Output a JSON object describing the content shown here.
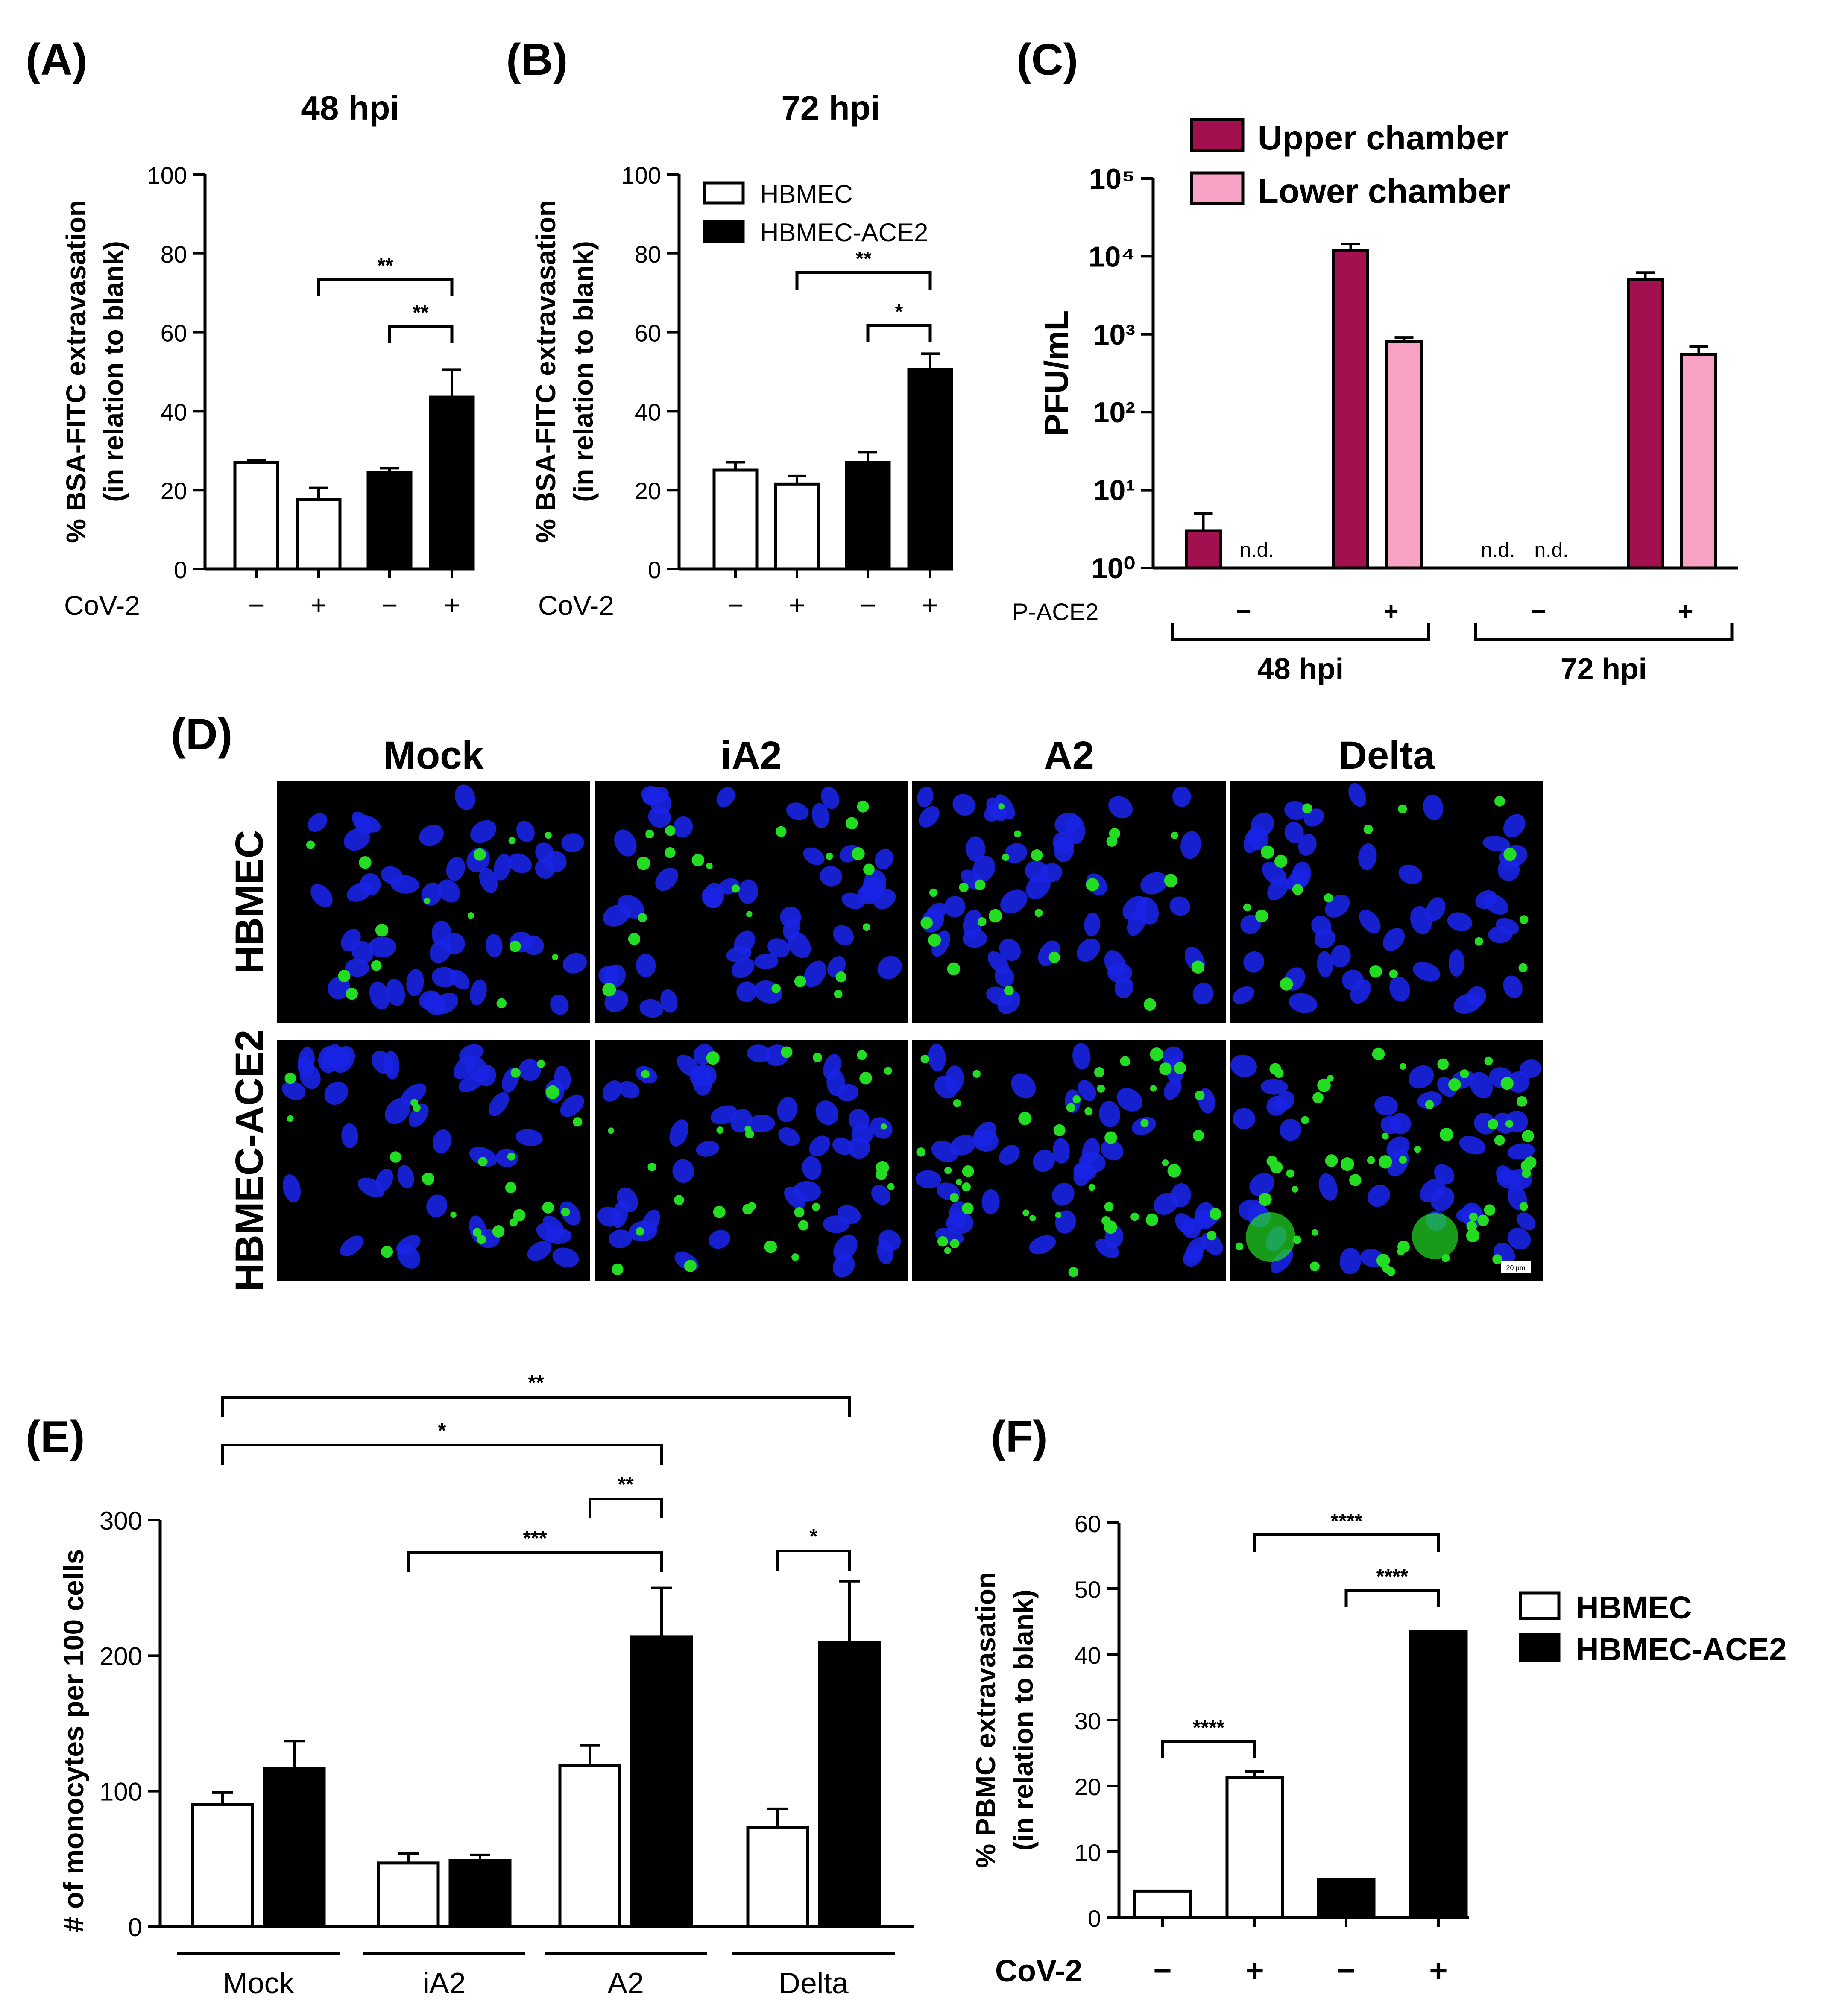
{
  "panel_labels": {
    "A": "(A)",
    "B": "(B)",
    "C": "(C)",
    "D": "(D)",
    "E": "(E)",
    "F": "(F)"
  },
  "colors": {
    "black": "#000000",
    "white": "#ffffff",
    "upper_chamber": "#a3104f",
    "lower_chamber": "#f7a1c4",
    "nuclei": "#1a24e6",
    "monocytes": "#22dd22",
    "image_bg": "#000000"
  },
  "chart_data": [
    {
      "id": "A",
      "type": "bar",
      "title": "48 hpi",
      "ylabel": [
        "% BSA-FITC extravasation",
        "(in relation to blank)"
      ],
      "xlabel": "",
      "ylim": [
        0,
        100
      ],
      "yticks": [
        0,
        20,
        40,
        60,
        80,
        100
      ],
      "row_label": "CoV-2",
      "categories": [
        "−",
        "+",
        "−",
        "+"
      ],
      "values": [
        27,
        17.5,
        24.5,
        43.5
      ],
      "errors": [
        0.5,
        3,
        1,
        7
      ],
      "fill": [
        "white",
        "white",
        "black",
        "black"
      ],
      "significance": [
        {
          "from": 1,
          "to": 3,
          "label": "**"
        },
        {
          "from": 2,
          "to": 3,
          "label": "**"
        }
      ]
    },
    {
      "id": "B",
      "type": "bar",
      "title": "72 hpi",
      "ylabel": [
        "% BSA-FITC extravasation",
        "(in relation to blank)"
      ],
      "xlabel": "",
      "ylim": [
        0,
        100
      ],
      "yticks": [
        0,
        20,
        40,
        60,
        80,
        100
      ],
      "row_label": "CoV-2",
      "categories": [
        "−",
        "+",
        "−",
        "+"
      ],
      "values": [
        25,
        21.5,
        27,
        50.5
      ],
      "errors": [
        2,
        2,
        2.5,
        4
      ],
      "fill": [
        "white",
        "white",
        "black",
        "black"
      ],
      "legend": [
        {
          "label": "HBMEC",
          "fill": "white"
        },
        {
          "label": "HBMEC-ACE2",
          "fill": "black"
        }
      ],
      "significance": [
        {
          "from": 1,
          "to": 3,
          "label": "**"
        },
        {
          "from": 2,
          "to": 3,
          "label": "*"
        }
      ]
    },
    {
      "id": "C",
      "type": "bar",
      "scale": "log",
      "ylabel": "PFU/mL",
      "xlabel": "",
      "ylim": [
        1,
        100000
      ],
      "yticks": [
        "10⁰",
        "10¹",
        "10²",
        "10³",
        "10⁴",
        "10⁵"
      ],
      "row_label": "P-ACE2",
      "groups": [
        {
          "treatment": "−",
          "time": "48 hpi"
        },
        {
          "treatment": "+",
          "time": "48 hpi"
        },
        {
          "treatment": "−",
          "time": "72 hpi"
        },
        {
          "treatment": "+",
          "time": "72 hpi"
        }
      ],
      "time_labels": [
        "48 hpi",
        "72 hpi"
      ],
      "series": [
        {
          "name": "Upper chamber",
          "color": "#a3104f",
          "values": [
            3,
            12000,
            null,
            5000
          ],
          "error_up": [
            5,
            14500,
            null,
            6200
          ]
        },
        {
          "name": "Lower chamber",
          "color": "#f7a1c4",
          "values": [
            null,
            800,
            null,
            550
          ],
          "error_up": [
            null,
            900,
            null,
            700
          ]
        }
      ],
      "nd_label": "n.d."
    },
    {
      "id": "E",
      "type": "bar",
      "ylabel": "# of monocytes per 100 cells",
      "xlabel": "",
      "ylim": [
        0,
        300
      ],
      "yticks": [
        0,
        100,
        200,
        300
      ],
      "categories": [
        "Mock",
        "iA2",
        "A2",
        "Delta"
      ],
      "series": [
        {
          "name": "HBMEC",
          "fill": "white",
          "values": [
            90,
            47,
            119,
            73
          ],
          "errors": [
            9,
            7,
            15,
            14
          ]
        },
        {
          "name": "HBMEC-ACE2",
          "fill": "black",
          "values": [
            117,
            49,
            214,
            210
          ],
          "errors": [
            20,
            4,
            36,
            45
          ]
        }
      ],
      "significance": [
        {
          "from": [
            0,
            0
          ],
          "to": [
            3,
            1
          ],
          "label": "**"
        },
        {
          "from": [
            0,
            0
          ],
          "to": [
            2,
            1
          ],
          "label": "*"
        },
        {
          "from": [
            2,
            0
          ],
          "to": [
            2,
            1
          ],
          "label": "**"
        },
        {
          "from": [
            1,
            0
          ],
          "to": [
            2,
            1
          ],
          "label": "***"
        },
        {
          "from": [
            3,
            0
          ],
          "to": [
            3,
            1
          ],
          "label": "*"
        }
      ]
    },
    {
      "id": "F",
      "type": "bar",
      "ylabel": [
        "% PBMC extravasation",
        "(in relation to blank)"
      ],
      "xlabel": "",
      "ylim": [
        0,
        60
      ],
      "yticks": [
        0,
        10,
        20,
        30,
        40,
        50,
        60
      ],
      "row_label": "CoV-2",
      "categories": [
        "−",
        "+",
        "−",
        "+"
      ],
      "values": [
        4,
        21.2,
        5.8,
        43.5
      ],
      "errors": [
        0,
        1,
        0,
        0
      ],
      "fill": [
        "white",
        "white",
        "black",
        "black"
      ],
      "legend": [
        {
          "label": "HBMEC",
          "fill": "white"
        },
        {
          "label": "HBMEC-ACE2",
          "fill": "black"
        }
      ],
      "significance": [
        {
          "from": 0,
          "to": 1,
          "label": "****"
        },
        {
          "from": 1,
          "to": 3,
          "label": "****"
        },
        {
          "from": 2,
          "to": 3,
          "label": "****"
        }
      ]
    }
  ],
  "panel_d": {
    "columns": [
      "Mock",
      "iA2",
      "A2",
      "Delta"
    ],
    "rows": [
      "HBMEC",
      "HBMEC-ACE2"
    ],
    "scale_bar": "20 µm",
    "monocyte_density": [
      [
        0.6,
        0.9,
        0.9,
        0.7
      ],
      [
        0.9,
        1.2,
        1.8,
        2.2
      ]
    ]
  }
}
